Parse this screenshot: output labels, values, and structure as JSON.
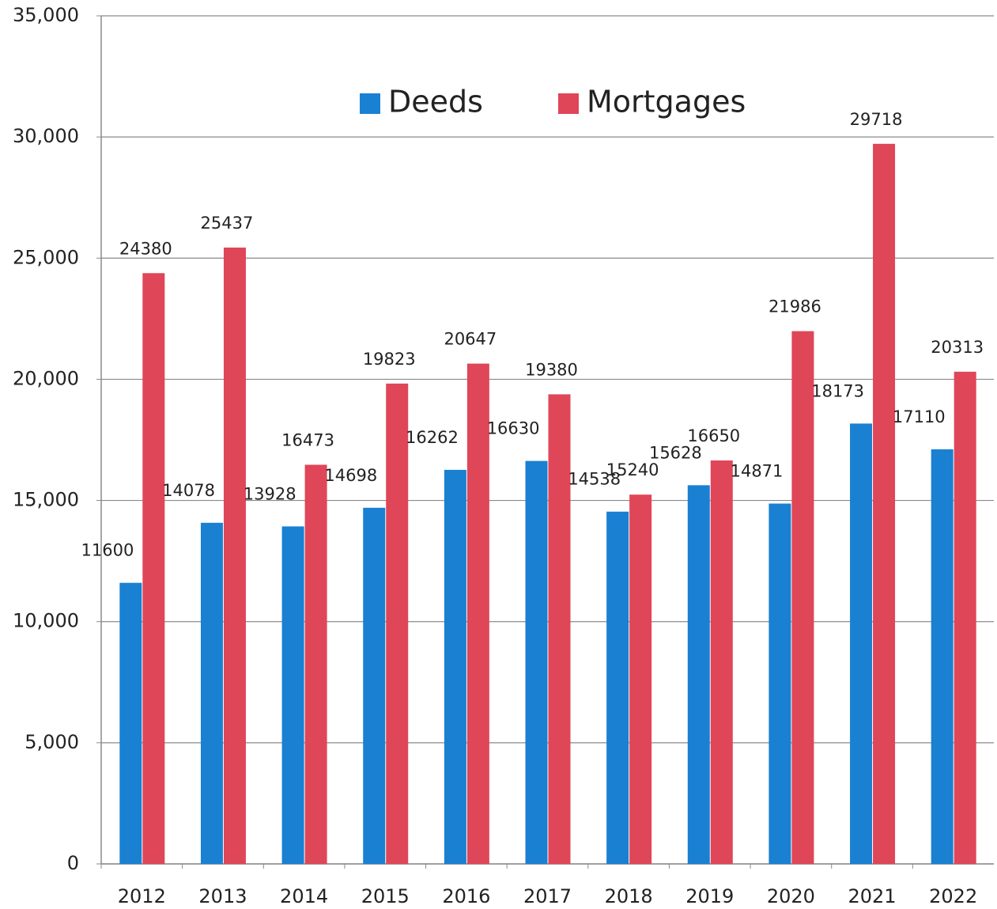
{
  "chart_data": {
    "type": "bar",
    "categories": [
      "2012",
      "2013",
      "2014",
      "2015",
      "2016",
      "2017",
      "2018",
      "2019",
      "2020",
      "2021",
      "2022"
    ],
    "series": [
      {
        "name": "Deeds",
        "color": "#1a80d2",
        "values": [
          11600,
          14078,
          13928,
          14698,
          16262,
          16630,
          14538,
          15628,
          14871,
          18173,
          17110
        ]
      },
      {
        "name": "Mortgages",
        "color": "#df4658",
        "values": [
          24380,
          25437,
          16473,
          19823,
          20647,
          19380,
          15240,
          16650,
          21986,
          29718,
          20313
        ]
      }
    ],
    "ylim": [
      0,
      35000
    ],
    "yticks": [
      0,
      {
        "value": 5000,
        "label": "5,000"
      },
      {
        "value": 10000,
        "label": "10,000"
      },
      {
        "value": 15000,
        "label": "15,000"
      },
      {
        "value": 20000,
        "label": "20,000"
      },
      {
        "value": 25000,
        "label": "25,000"
      },
      {
        "value": 30000,
        "label": "30,000"
      },
      {
        "value": 35000,
        "label": "35,000"
      }
    ],
    "grid": true,
    "legend": "top"
  }
}
